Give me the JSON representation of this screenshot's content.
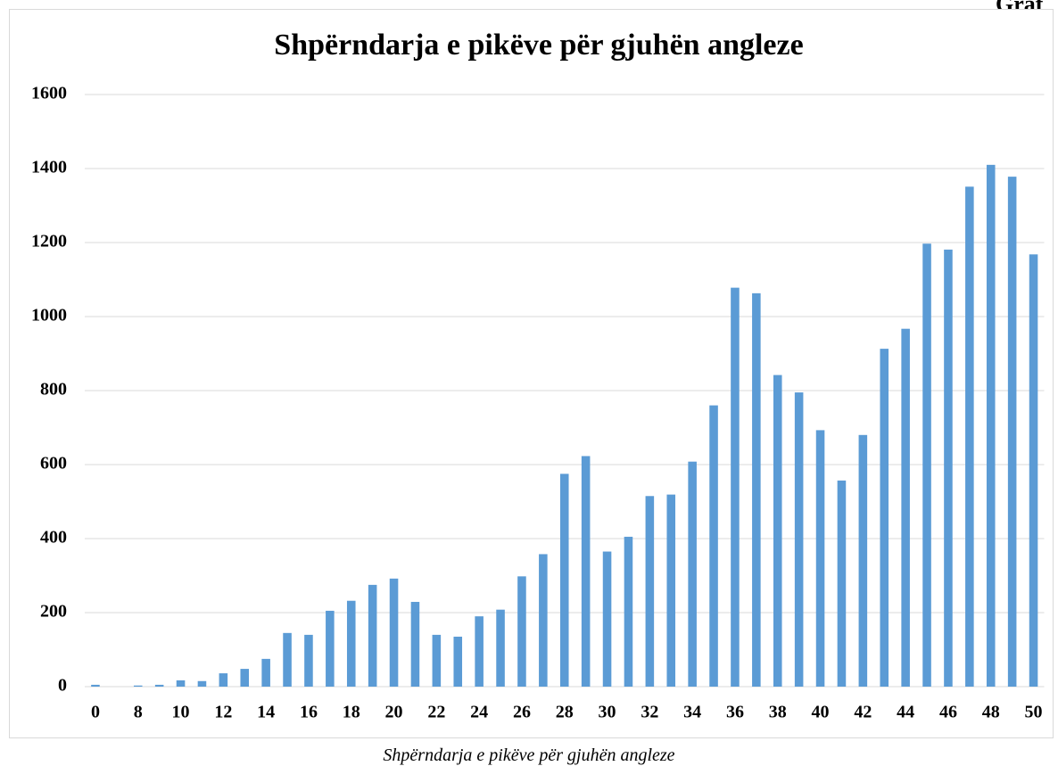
{
  "header_text": "Graf",
  "caption": "Shpërndarja e pikëve për gjuhën angleze",
  "chart_data": {
    "type": "bar",
    "title": "Shpërndarja e pikëve për gjuhën angleze",
    "categories": [
      "0",
      null,
      "8",
      null,
      "10",
      null,
      "12",
      null,
      "14",
      null,
      "16",
      null,
      "18",
      null,
      "20",
      null,
      "22",
      null,
      "24",
      null,
      "26",
      null,
      "28",
      null,
      "30",
      null,
      "32",
      null,
      "34",
      null,
      "36",
      null,
      "38",
      null,
      "40",
      null,
      "42",
      null,
      "44",
      null,
      "46",
      null,
      "48",
      null,
      "50"
    ],
    "values": [
      5,
      0,
      3,
      5,
      17,
      15,
      36,
      48,
      75,
      145,
      140,
      205,
      232,
      275,
      292,
      229,
      140,
      135,
      190,
      208,
      298,
      358,
      575,
      623,
      365,
      405,
      515,
      519,
      608,
      760,
      1078,
      1063,
      842,
      795,
      693,
      557,
      680,
      913,
      967,
      1197,
      1181,
      1351,
      1410,
      1378,
      1168
    ],
    "color": "#5b9bd5",
    "ylim": [
      0,
      1600
    ],
    "yticks": [
      0,
      200,
      400,
      600,
      800,
      1000,
      1200,
      1400,
      1600
    ],
    "grid": true
  }
}
